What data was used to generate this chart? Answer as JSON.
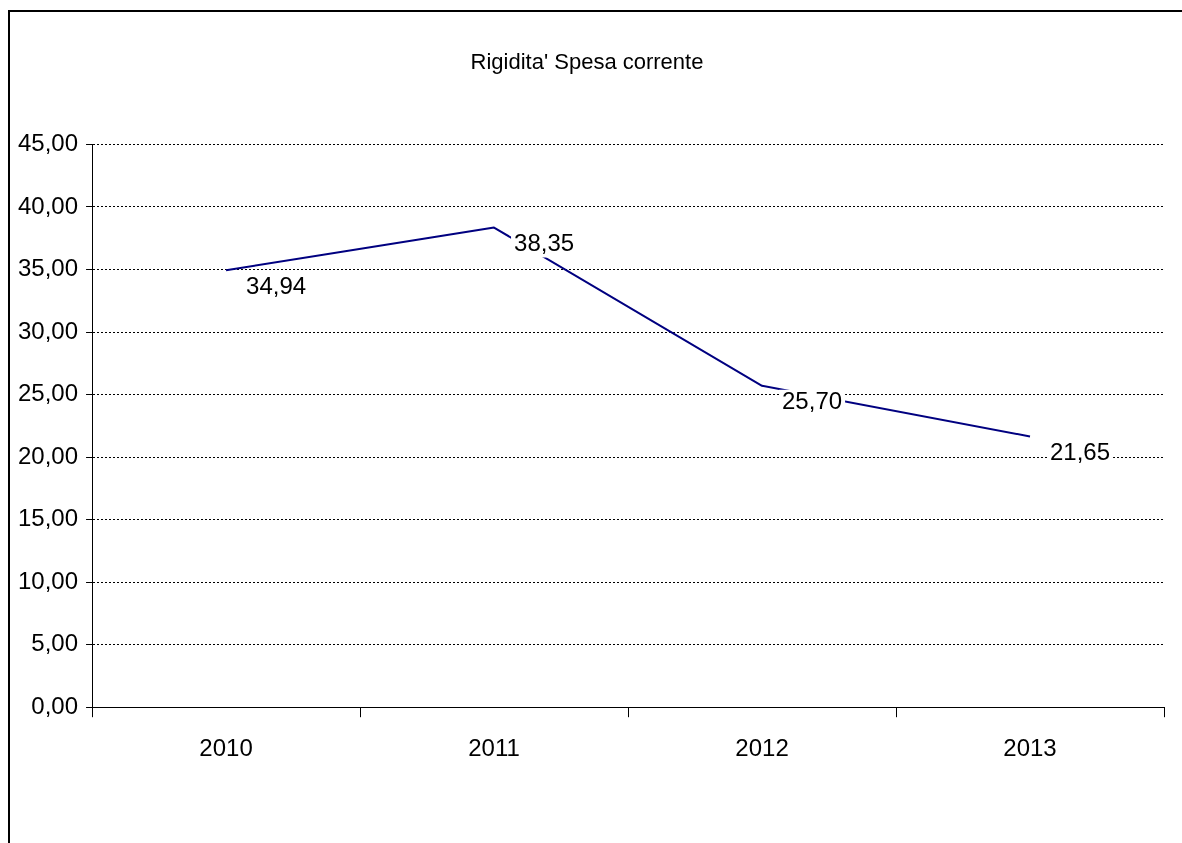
{
  "chart_data": {
    "type": "line",
    "title": "Rigidita' Spesa corrente",
    "categories": [
      "2010",
      "2011",
      "2012",
      "2013"
    ],
    "series": [
      {
        "color": "#000080",
        "values": [
          34.94,
          38.35,
          25.7,
          21.65
        ],
        "value_labels": [
          "34,94",
          "38,35",
          "25,70",
          "21,65"
        ]
      }
    ],
    "ylim": [
      0,
      45
    ],
    "yticks": [
      {
        "value": 0,
        "label": "0,00"
      },
      {
        "value": 5,
        "label": "5,00"
      },
      {
        "value": 10,
        "label": "10,00"
      },
      {
        "value": 15,
        "label": "15,00"
      },
      {
        "value": 20,
        "label": "20,00"
      },
      {
        "value": 25,
        "label": "25,00"
      },
      {
        "value": 30,
        "label": "30,00"
      },
      {
        "value": 35,
        "label": "35,00"
      },
      {
        "value": 40,
        "label": "40,00"
      },
      {
        "value": 45,
        "label": "45,00"
      }
    ],
    "grid": "y",
    "legend": false,
    "marker": "none",
    "line_style": "solid"
  }
}
